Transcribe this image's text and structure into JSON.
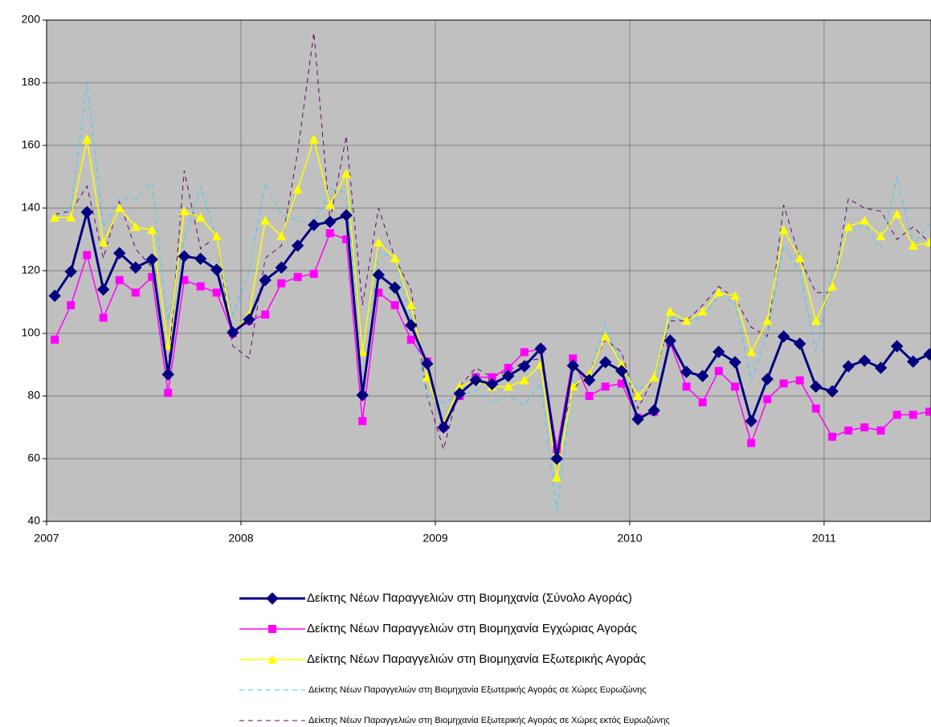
{
  "chart_data": {
    "type": "line",
    "x": [
      2007.042,
      2007.125,
      2007.208,
      2007.292,
      2007.375,
      2007.458,
      2007.542,
      2007.625,
      2007.708,
      2007.792,
      2007.875,
      2007.958,
      2008.042,
      2008.125,
      2008.208,
      2008.292,
      2008.375,
      2008.458,
      2008.542,
      2008.625,
      2008.708,
      2008.792,
      2008.875,
      2008.958,
      2009.042,
      2009.125,
      2009.208,
      2009.292,
      2009.375,
      2009.458,
      2009.542,
      2009.625,
      2009.708,
      2009.792,
      2009.875,
      2009.958,
      2010.042,
      2010.125,
      2010.208,
      2010.292,
      2010.375,
      2010.458,
      2010.542,
      2010.625,
      2010.708,
      2010.792,
      2010.875,
      2010.958,
      2011.042,
      2011.125,
      2011.208,
      2011.292,
      2011.375,
      2011.458,
      2011.542
    ],
    "xlim": [
      2007,
      2011.55
    ],
    "xticks": [
      2007,
      2008,
      2009,
      2010,
      2011
    ],
    "ylim": [
      40,
      200
    ],
    "yticks": [
      40,
      60,
      80,
      100,
      120,
      140,
      160,
      180,
      200
    ],
    "grid": true,
    "legend": "bottom",
    "series": [
      {
        "name": "Δείκτης Νέων Παραγγελιών στη Βιομηχανία (Σύνολο Αγοράς)",
        "color": "#000080",
        "marker": "diamond",
        "dash": "none",
        "width": 3,
        "values": [
          112,
          119.7,
          138.7,
          114,
          125.6,
          121,
          123.6,
          86.9,
          124.6,
          123.8,
          120.3,
          100.3,
          104.4,
          117,
          121,
          128,
          134.6,
          135.6,
          137.7,
          80.3,
          118.7,
          114.6,
          102.6,
          90.3,
          70,
          80.8,
          85.1,
          83.8,
          86.4,
          89.5,
          95.1,
          60,
          89.7,
          85.1,
          90.8,
          88,
          72.6,
          75.4,
          97.7,
          87.7,
          86.4,
          94.1,
          90.8,
          72,
          85.4,
          99,
          96.7,
          83,
          81.5,
          89.5,
          91.3,
          89,
          95.9,
          91,
          93.3
        ]
      },
      {
        "name": "Δείκτης Νέων Παραγγελιών στη Βιομηχανία Εγχώριας Αγοράς",
        "color": "#ff00ff",
        "marker": "square",
        "dash": "none",
        "width": 1.5,
        "values": [
          98,
          109,
          125,
          105,
          117,
          113,
          118,
          81,
          117,
          115,
          113,
          100,
          104,
          106,
          116,
          118,
          119,
          132,
          130,
          72,
          113,
          109,
          98,
          91,
          70,
          80,
          86,
          86,
          89,
          94,
          95,
          63,
          92,
          80,
          83,
          84,
          73,
          75,
          97,
          83,
          78,
          88,
          83,
          65,
          79,
          84,
          85,
          76,
          67,
          69,
          70,
          69,
          74,
          74,
          75
        ]
      },
      {
        "name": "Δείκτης Νέων Παραγγελιών στη Βιομηχανία Εξωτερικής Αγοράς",
        "color": "#ffff00",
        "marker": "triangle",
        "dash": "none",
        "width": 1.5,
        "values": [
          137,
          137,
          162,
          129,
          140,
          134,
          133,
          96,
          139,
          137,
          131,
          100,
          106,
          136,
          131,
          146,
          162,
          141,
          151,
          94,
          129,
          124,
          109,
          86,
          71,
          83,
          85,
          83,
          83,
          85,
          90,
          54,
          83,
          87,
          99,
          90,
          80,
          86,
          107,
          104,
          107,
          113,
          112,
          94,
          104,
          133,
          124,
          104,
          115,
          134,
          136,
          131,
          138,
          128,
          129
        ]
      },
      {
        "name": "Δείκτης Νέων Παραγγελιών στη Βιομηχανία Εξωτερικής Αγοράς σε Χώρες Ευρωζώνης",
        "color": "#33ccff",
        "marker": "none",
        "dash": "6 5",
        "width": 1,
        "values": [
          137,
          140,
          180,
          134,
          143,
          143,
          148,
          104,
          130,
          147,
          130,
          106,
          120,
          148,
          138,
          136,
          135,
          146,
          145,
          94,
          126,
          124,
          105,
          80,
          78,
          80,
          82,
          78,
          80,
          77,
          84,
          43,
          85,
          87,
          103,
          90,
          82,
          85,
          105,
          104,
          105,
          112,
          110,
          85,
          100,
          128,
          120,
          94,
          119,
          132,
          135,
          127,
          150,
          128,
          135
        ]
      },
      {
        "name": "Δείκτης Νέων Παραγγελιών στη Βιομηχανία Εξωτερικής Αγοράς σε Χώρες εκτός Ευρωζώνης",
        "color": "#660066",
        "marker": "none",
        "dash": "6 5",
        "width": 1,
        "values": [
          138,
          139,
          147,
          124,
          142,
          127,
          121,
          88,
          152,
          127,
          131,
          96,
          92,
          124,
          128,
          158,
          196,
          136,
          163,
          109,
          140,
          124,
          114,
          80,
          63,
          83,
          89,
          86,
          88,
          91,
          92,
          64,
          82,
          88,
          98,
          94,
          76,
          86,
          104,
          104,
          109,
          115,
          111,
          102,
          99,
          141,
          124,
          113,
          113,
          143,
          140,
          139,
          130,
          134,
          129
        ]
      }
    ]
  }
}
